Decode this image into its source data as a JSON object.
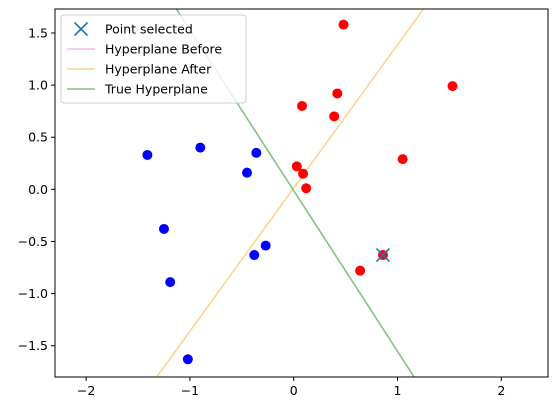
{
  "chart_data": {
    "type": "scatter",
    "title": "",
    "xlabel": "",
    "ylabel": "",
    "xlim": [
      -2.3,
      2.45
    ],
    "ylim": [
      -1.8,
      1.73
    ],
    "grid": false,
    "legend_placement": "top-left",
    "x_ticks": [
      -2,
      -1,
      0,
      1,
      2
    ],
    "x_tick_labels": [
      "−2",
      "−1",
      "0",
      "1",
      "2"
    ],
    "y_ticks": [
      -1.5,
      -1.0,
      -0.5,
      0.0,
      0.5,
      1.0,
      1.5
    ],
    "y_tick_labels": [
      "−1.5",
      "−1.0",
      "−0.5",
      "0.0",
      "0.5",
      "1.0",
      "1.5"
    ],
    "points": {
      "red": {
        "color": "#ff0000",
        "x": [
          0.48,
          1.53,
          0.08,
          0.42,
          0.39,
          1.05,
          0.03,
          0.09,
          0.12,
          0.86,
          0.64
        ],
        "y": [
          1.58,
          0.99,
          0.8,
          0.92,
          0.7,
          0.29,
          0.22,
          0.15,
          0.01,
          -0.63,
          -0.78
        ]
      },
      "blue": {
        "color": "#0000ff",
        "x": [
          -1.41,
          -0.9,
          -0.36,
          -0.45,
          -1.25,
          -0.38,
          -0.27,
          -1.19,
          -1.02
        ],
        "y": [
          0.33,
          0.4,
          0.35,
          0.16,
          -0.38,
          -0.63,
          -0.54,
          -0.89,
          -1.63
        ]
      }
    },
    "series": [
      {
        "name": "Point selected",
        "kind": "marker",
        "marker": "x",
        "color": "#1f77b4",
        "x": [
          0.86
        ],
        "y": [
          -0.63
        ]
      },
      {
        "name": "Hyperplane Before",
        "kind": "line",
        "color": "#f5b8f0",
        "x": [],
        "y": []
      },
      {
        "name": "Hyperplane After",
        "kind": "line",
        "color": "#fcd493",
        "x": [
          -1.32,
          1.25
        ],
        "y": [
          -1.8,
          1.73
        ]
      },
      {
        "name": "True Hyperplane",
        "kind": "line",
        "color": "#82c483",
        "x": [
          -1.13,
          1.16
        ],
        "y": [
          1.73,
          -1.8
        ]
      }
    ]
  }
}
